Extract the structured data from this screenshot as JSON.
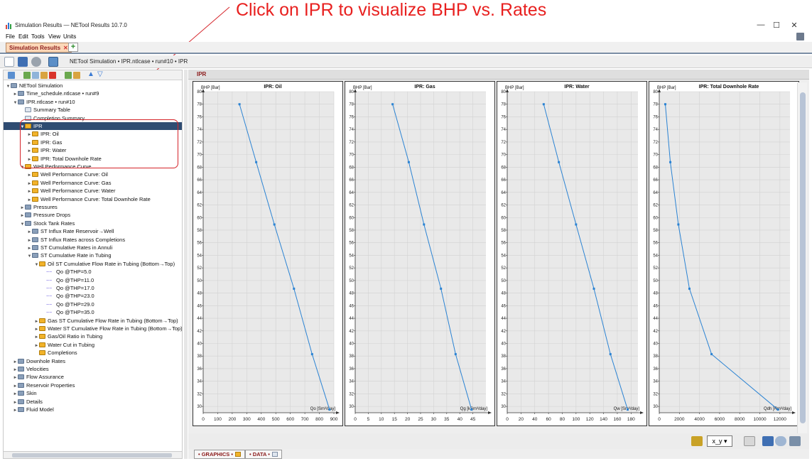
{
  "annotation": {
    "text": "Click on IPR to visualize BHP vs. Rates",
    "color": "#e8201f"
  },
  "window": {
    "title": "Simulation Results — NETool Results 10.7.0",
    "buttons": {
      "minimize": "—",
      "maximize": "☐",
      "close": "✕"
    }
  },
  "menu": {
    "file": "File",
    "edit": "Edit",
    "tools": "Tools",
    "view": "View",
    "units": "Units"
  },
  "tab": {
    "label": "Simulation Results",
    "close": "✕",
    "add": "+"
  },
  "breadcrumb": "NETool Simulation • IPR.ntlcase • run#10 • IPR",
  "tree": [
    {
      "level": 0,
      "icon": "folder",
      "tw": "▼",
      "label": "NETool Simulation"
    },
    {
      "level": 1,
      "icon": "folder",
      "tw": "►",
      "label": "Time_schedule.ntlcase • run#9"
    },
    {
      "level": 1,
      "icon": "folder",
      "tw": "▼",
      "label": "IPR.ntlcase • run#10"
    },
    {
      "level": 2,
      "icon": "table",
      "tw": "",
      "label": "Summary Table"
    },
    {
      "level": 2,
      "icon": "table",
      "tw": "",
      "label": "Completion Summary"
    },
    {
      "level": 2,
      "icon": "chart",
      "tw": "▼",
      "label": "IPR",
      "selected": true
    },
    {
      "level": 3,
      "icon": "chart",
      "tw": "►",
      "label": "IPR: Oil"
    },
    {
      "level": 3,
      "icon": "chart",
      "tw": "►",
      "label": "IPR: Gas"
    },
    {
      "level": 3,
      "icon": "chart",
      "tw": "►",
      "label": "IPR: Water"
    },
    {
      "level": 3,
      "icon": "chart",
      "tw": "►",
      "label": "IPR: Total Downhole Rate"
    },
    {
      "level": 2,
      "icon": "chart",
      "tw": "▼",
      "label": "Well Performance Curve"
    },
    {
      "level": 3,
      "icon": "chart",
      "tw": "►",
      "label": "Well Performance Curve: Oil"
    },
    {
      "level": 3,
      "icon": "chart",
      "tw": "►",
      "label": "Well Performance Curve: Gas"
    },
    {
      "level": 3,
      "icon": "chart",
      "tw": "►",
      "label": "Well Performance Curve: Water"
    },
    {
      "level": 3,
      "icon": "chart",
      "tw": "►",
      "label": "Well Performance Curve: Total Downhole Rate"
    },
    {
      "level": 2,
      "icon": "folder",
      "tw": "►",
      "label": "Pressures"
    },
    {
      "level": 2,
      "icon": "folder",
      "tw": "►",
      "label": "Pressure Drops"
    },
    {
      "level": 2,
      "icon": "folder",
      "tw": "▼",
      "label": "Stock Tank Rates"
    },
    {
      "level": 3,
      "icon": "folder",
      "tw": "►",
      "label": "ST Influx Rate Reservoir→Well"
    },
    {
      "level": 3,
      "icon": "folder",
      "tw": "►",
      "label": "ST Influx Rates across Completions"
    },
    {
      "level": 3,
      "icon": "folder",
      "tw": "►",
      "label": "ST Cumulative Rates in Annuli"
    },
    {
      "level": 3,
      "icon": "folder",
      "tw": "▼",
      "label": "ST Cumulative Rate in Tubing"
    },
    {
      "level": 4,
      "icon": "chart",
      "tw": "▼",
      "label": "Oil ST Cumulative Flow Rate in Tubing (Bottom→Top)"
    },
    {
      "level": 5,
      "icon": "series",
      "tw": "",
      "label": "Qo @THP=5.0"
    },
    {
      "level": 5,
      "icon": "series",
      "tw": "",
      "label": "Qo @THP=11.0"
    },
    {
      "level": 5,
      "icon": "series",
      "tw": "",
      "label": "Qo @THP=17.0"
    },
    {
      "level": 5,
      "icon": "series",
      "tw": "",
      "label": "Qo @THP=23.0"
    },
    {
      "level": 5,
      "icon": "series",
      "tw": "",
      "label": "Qo @THP=29.0"
    },
    {
      "level": 5,
      "icon": "series",
      "tw": "",
      "label": "Qo @THP=35.0"
    },
    {
      "level": 4,
      "icon": "chart",
      "tw": "►",
      "label": "Gas ST Cumulative Flow Rate in Tubing (Bottom→Top)"
    },
    {
      "level": 4,
      "icon": "chart",
      "tw": "►",
      "label": "Water ST Cumulative Flow Rate in Tubing (Bottom→Top)"
    },
    {
      "level": 4,
      "icon": "chart",
      "tw": "►",
      "label": "Gas/Oil Ratio in Tubing"
    },
    {
      "level": 4,
      "icon": "chart",
      "tw": "►",
      "label": "Water Cut in Tubing"
    },
    {
      "level": 4,
      "icon": "chart",
      "tw": "",
      "label": "Completions"
    },
    {
      "level": 1,
      "icon": "folder",
      "tw": "►",
      "label": "Downhole Rates"
    },
    {
      "level": 1,
      "icon": "folder",
      "tw": "►",
      "label": "Velocities"
    },
    {
      "level": 1,
      "icon": "folder",
      "tw": "►",
      "label": "Flow Assurance"
    },
    {
      "level": 1,
      "icon": "folder",
      "tw": "►",
      "label": "Reservoir Properties"
    },
    {
      "level": 1,
      "icon": "folder",
      "tw": "►",
      "label": "Skin"
    },
    {
      "level": 1,
      "icon": "folder",
      "tw": "►",
      "label": "Details"
    },
    {
      "level": 1,
      "icon": "folder",
      "tw": "►",
      "label": "Fluid Model"
    }
  ],
  "right": {
    "title": "IPR",
    "axes_select": "x_y ▾"
  },
  "bottom_tabs": {
    "graphics": "• GRAPHICS •",
    "data": "• DATA •"
  },
  "chart_data": [
    {
      "type": "line",
      "title": "IPR: Oil",
      "ylabel": "BHP [Bar]",
      "xlabel": "Qo [Sm³/day]",
      "xlim": [
        0,
        900
      ],
      "ylim": [
        29,
        80
      ],
      "xticks": [
        0,
        100,
        200,
        300,
        400,
        500,
        600,
        700,
        800,
        900
      ],
      "yticks": [
        30,
        32,
        34,
        36,
        38,
        40,
        42,
        44,
        46,
        48,
        50,
        52,
        54,
        56,
        58,
        60,
        62,
        64,
        66,
        68,
        70,
        72,
        74,
        76,
        78,
        80
      ],
      "x": [
        250,
        365,
        490,
        625,
        750,
        870
      ],
      "y": [
        78,
        68.8,
        58.9,
        48.7,
        38.3,
        29.5
      ],
      "color": "#2b83d3",
      "grid": true
    },
    {
      "type": "line",
      "title": "IPR: Gas",
      "ylabel": "BHP [Bar]",
      "xlabel": "Qg [kSm³/day]",
      "xlim": [
        0,
        50
      ],
      "ylim": [
        29,
        80
      ],
      "xticks": [
        0,
        5,
        10,
        15,
        20,
        25,
        30,
        35,
        40,
        45
      ],
      "yticks": [
        30,
        32,
        34,
        36,
        38,
        40,
        42,
        44,
        46,
        48,
        50,
        52,
        54,
        56,
        58,
        60,
        62,
        64,
        66,
        68,
        70,
        72,
        74,
        76,
        78,
        80
      ],
      "x": [
        14.3,
        20.5,
        26.3,
        32.8,
        38.4,
        44.5
      ],
      "y": [
        78,
        68.8,
        58.9,
        48.7,
        38.3,
        29.5
      ],
      "color": "#2b83d3",
      "grid": true
    },
    {
      "type": "line",
      "title": "IPR: Water",
      "ylabel": "BHP [Bar]",
      "xlabel": "Qw [Sm³/day]",
      "xlim": [
        0,
        190
      ],
      "ylim": [
        29,
        80
      ],
      "xticks": [
        0,
        20,
        40,
        60,
        80,
        100,
        120,
        140,
        160,
        180
      ],
      "yticks": [
        30,
        32,
        34,
        36,
        38,
        40,
        42,
        44,
        46,
        48,
        50,
        52,
        54,
        56,
        58,
        60,
        62,
        64,
        66,
        68,
        70,
        72,
        74,
        76,
        78,
        80
      ],
      "x": [
        53,
        75,
        100,
        126,
        150,
        175
      ],
      "y": [
        78,
        68.8,
        58.9,
        48.7,
        38.3,
        29.5
      ],
      "color": "#2b83d3",
      "grid": true
    },
    {
      "type": "line",
      "title": "IPR: Total Downhole Rate",
      "ylabel": "BHP [Bar]",
      "xlabel": "Qdh [Rm³/day]",
      "xlim": [
        0,
        13000
      ],
      "ylim": [
        29,
        80
      ],
      "xticks": [
        0,
        2000,
        4000,
        6000,
        8000,
        10000,
        12000
      ],
      "yticks": [
        30,
        32,
        34,
        36,
        38,
        40,
        42,
        44,
        46,
        48,
        50,
        52,
        54,
        56,
        58,
        60,
        62,
        64,
        66,
        68,
        70,
        72,
        74,
        76,
        78,
        80
      ],
      "x": [
        600,
        1100,
        1900,
        3000,
        5200,
        11800
      ],
      "y": [
        78,
        68.8,
        58.9,
        48.7,
        38.3,
        29.5
      ],
      "color": "#2b83d3",
      "grid": true
    }
  ]
}
